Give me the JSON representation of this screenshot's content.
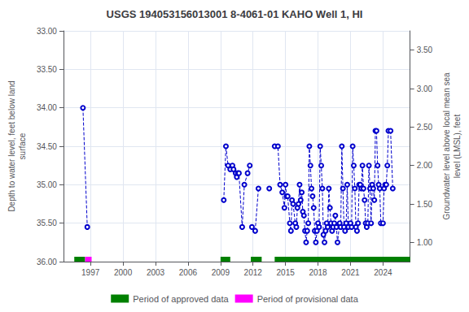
{
  "chart_data": {
    "type": "line",
    "title": "USGS 194053156013001 8-4061-01 KAHO Well 1, HI",
    "ylabel": "Depth to water level, feet below land\nsurface",
    "y2label": "Groundwater level above local mean sea\nlevel (LMSL), feet",
    "xlim": [
      1994.5,
      2026.5
    ],
    "xticks": [
      1997,
      2000,
      2003,
      2006,
      2009,
      2012,
      2015,
      2018,
      2021,
      2024
    ],
    "ylim": [
      36.0,
      33.0
    ],
    "yticks": [
      {
        "value": 33.0,
        "label": "33.00"
      },
      {
        "value": 33.5,
        "label": "33.50"
      },
      {
        "value": 34.0,
        "label": "34.00"
      },
      {
        "value": 34.5,
        "label": "34.50"
      },
      {
        "value": 35.0,
        "label": "35.00"
      },
      {
        "value": 35.5,
        "label": "35.50"
      },
      {
        "value": 36.0,
        "label": "36.00"
      }
    ],
    "y2lim": [
      0.75,
      3.75
    ],
    "y2ticks": [
      {
        "value": 3.5,
        "label": "3.50"
      },
      {
        "value": 3.0,
        "label": "3.00"
      },
      {
        "value": 2.5,
        "label": "2.50"
      },
      {
        "value": 2.0,
        "label": "2.00"
      },
      {
        "value": 1.5,
        "label": "1.50"
      },
      {
        "value": 1.0,
        "label": "1.00"
      }
    ],
    "grid": true,
    "legend": "bottom",
    "x": [
      1996.3,
      1996.7,
      null,
      2009.3,
      2009.5,
      2009.7,
      2009.9,
      2010.1,
      2010.2,
      2010.4,
      2010.5,
      2010.6,
      2010.7,
      2011.0,
      2011.2,
      2011.5,
      2011.7,
      null,
      2011.9,
      2012.2,
      2012.5,
      null,
      2013.5,
      null,
      2014.0,
      2014.3,
      2014.5,
      2014.7,
      2014.9,
      2015.0,
      2015.1,
      2015.2,
      2015.4,
      2015.5,
      2015.6,
      2015.7,
      2015.9,
      2016.0,
      2016.1,
      2016.2,
      2016.3,
      2016.4,
      2016.5,
      2016.6,
      2016.7,
      2016.8,
      2016.9,
      2017.0,
      2017.1,
      2017.2,
      2017.3,
      2017.4,
      2017.5,
      2017.6,
      2017.7,
      2017.8,
      2017.9,
      2018.0,
      2018.1,
      2018.2,
      2018.3,
      2018.4,
      2018.5,
      2018.6,
      2018.7,
      2018.8,
      2018.9,
      2019.0,
      2019.1,
      2019.2,
      2019.3,
      2019.4,
      2019.5,
      2019.6,
      2019.7,
      2019.8,
      2020.0,
      2020.1,
      2020.2,
      2020.3,
      2020.4,
      2020.5,
      2020.6,
      2020.7,
      2020.8,
      2021.0,
      2021.1,
      2021.2,
      2021.3,
      2021.4,
      2021.5,
      2021.6,
      2021.7,
      2021.8,
      2021.9,
      2022.0,
      2022.1,
      2022.2,
      2022.3,
      2022.4,
      2022.5,
      2022.6,
      2022.7,
      2022.8,
      2022.9,
      2023.0,
      2023.1,
      2023.2,
      2023.3,
      2023.4,
      2023.5,
      2023.6,
      2023.7,
      2023.8,
      2024.0,
      2024.1,
      2024.2,
      2024.3,
      2024.4,
      2024.5,
      2024.7,
      2024.9
    ],
    "series": [
      {
        "color": "#0000CC",
        "marker": "circle",
        "line_style": "dashed",
        "values": [
          34.0,
          35.55,
          null,
          35.2,
          34.5,
          34.75,
          34.8,
          34.75,
          34.8,
          34.85,
          34.9,
          34.85,
          34.85,
          35.55,
          35.0,
          34.85,
          34.75,
          null,
          35.55,
          35.6,
          35.05,
          null,
          35.05,
          null,
          34.5,
          34.5,
          35.0,
          35.1,
          35.3,
          35.0,
          35.15,
          35.15,
          35.5,
          35.6,
          35.2,
          35.25,
          35.5,
          35.55,
          35.3,
          35.25,
          35.0,
          35.2,
          35.1,
          35.35,
          35.4,
          35.6,
          35.75,
          35.6,
          35.5,
          34.5,
          34.75,
          35.05,
          35.15,
          35.3,
          35.6,
          35.75,
          35.6,
          35.5,
          35.55,
          34.5,
          34.75,
          35.05,
          35.65,
          35.75,
          35.6,
          35.5,
          35.55,
          35.05,
          35.3,
          35.5,
          35.6,
          35.55,
          35.5,
          35.4,
          35.55,
          35.75,
          35.5,
          35.55,
          34.5,
          35.05,
          35.55,
          35.6,
          35.5,
          35.0,
          35.55,
          35.5,
          35.55,
          34.5,
          34.75,
          35.05,
          35.55,
          35.6,
          35.5,
          35.0,
          35.0,
          35.05,
          34.75,
          35.05,
          35.2,
          35.5,
          35.55,
          35.5,
          34.75,
          35.05,
          35.5,
          35.0,
          35.05,
          35.2,
          34.3,
          34.3,
          34.75,
          35.0,
          35.05,
          35.5,
          35.5,
          35.05,
          35.0,
          35.0,
          34.75,
          34.3,
          34.3,
          35.05
        ]
      }
    ],
    "periods": [
      {
        "name": "Period of approved data",
        "color": "#008000",
        "ranges": [
          [
            1995.5,
            1996.5
          ],
          [
            2009.0,
            2009.9
          ],
          [
            2011.8,
            2012.8
          ],
          [
            2014.0,
            2026.5
          ]
        ]
      },
      {
        "name": "Period of provisional data",
        "color": "#FF00FF",
        "ranges": [
          [
            1996.5,
            1997.1
          ]
        ]
      }
    ]
  }
}
